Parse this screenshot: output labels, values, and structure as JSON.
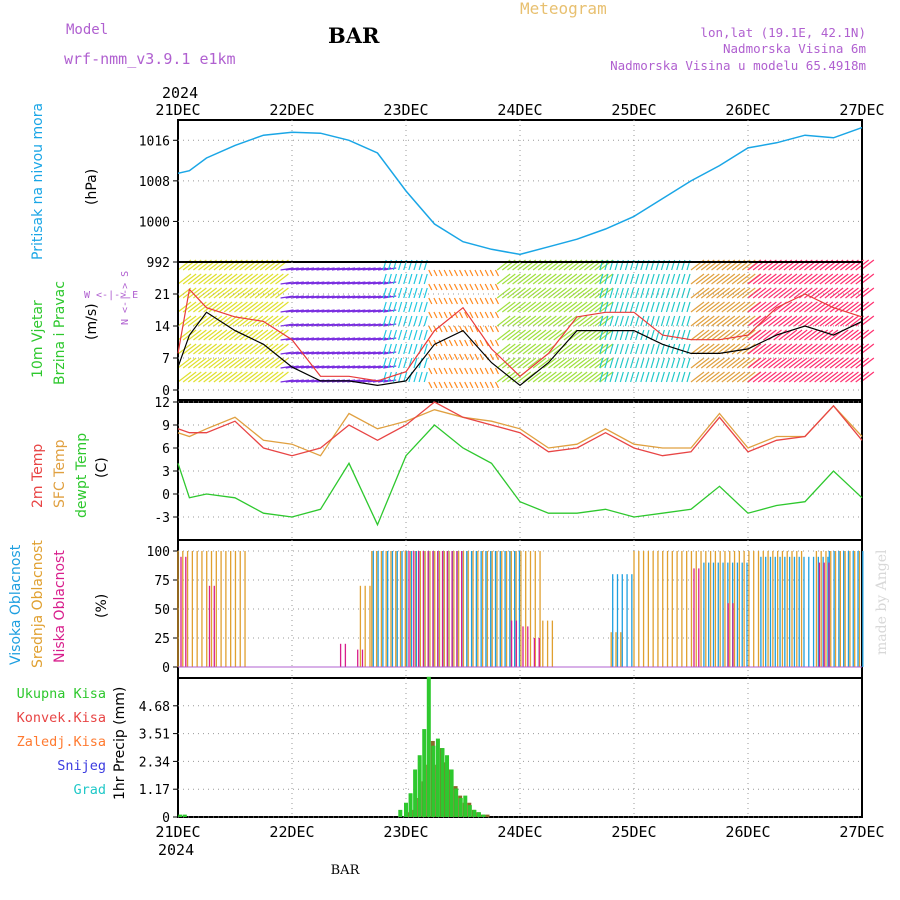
{
  "header": {
    "model_label": "Model",
    "model_name": "wrf-nmm_v3.9.1 e1km",
    "station": "BAR",
    "title": "Meteogram",
    "lonlat": "lon,lat (19.1E, 42.1N)",
    "elevation": "Nadmorska Visina 6m",
    "model_elevation": "Nadmorska Visina u modelu 65.4918m",
    "watermark": "made by Angel",
    "footer_station": "BAR"
  },
  "x_axis": {
    "year": "2024",
    "ticks": [
      "21DEC",
      "22DEC",
      "23DEC",
      "24DEC",
      "25DEC",
      "26DEC",
      "27DEC"
    ]
  },
  "colors": {
    "pressure": "#1aa6e6",
    "wind_speed": "#000000",
    "gust": "#e83a3a",
    "temp2m": "#e84545",
    "sfc_temp": "#e0a040",
    "dewpoint": "#2ec82e",
    "high_cloud": "#1e9fe0",
    "mid_cloud": "#e0a030",
    "low_cloud": "#d81e8c",
    "total_precip": "#2ec82e",
    "conv_precip": "#e84545",
    "frozen_precip": "#ff7a30",
    "snow": "#3a3ae0",
    "hail": "#20c8c8"
  },
  "chart_data": [
    {
      "type": "line",
      "panel": "pressure",
      "ylabel_1": "Pritisak na nivou mora",
      "ylabel_2": "(hPa)",
      "yticks": [
        "1016",
        "1008",
        "1000",
        "992"
      ],
      "ylim": [
        992,
        1020
      ],
      "x_days": [
        0,
        0.1,
        0.25,
        0.5,
        0.75,
        1.0,
        1.25,
        1.5,
        1.75,
        2.0,
        2.25,
        2.5,
        2.75,
        3.0,
        3.25,
        3.5,
        3.75,
        4.0,
        4.25,
        4.5,
        4.75,
        5.0,
        5.25,
        5.5,
        5.75,
        6.0
      ],
      "values": [
        1009.5,
        1010,
        1012.5,
        1015,
        1017,
        1017.6,
        1017.4,
        1016,
        1013.5,
        1006,
        999.5,
        996,
        994.5,
        993.5,
        995,
        996.5,
        998.5,
        1001,
        1004.5,
        1008,
        1011,
        1014.5,
        1015.5,
        1017,
        1016.5,
        1018.5
      ]
    },
    {
      "type": "line",
      "panel": "wind",
      "ylabel_1": "10m Vjetar",
      "ylabel_2": "Brzina i Pravac",
      "ylabel_3": "(m/s)",
      "compass_v": "N <-|-> S",
      "compass_h": "W <-|-> E",
      "yticks": [
        "21",
        "14",
        "7",
        "0"
      ],
      "ylim": [
        0,
        28
      ],
      "legend_speed": "",
      "x_days": [
        0,
        0.1,
        0.25,
        0.5,
        0.75,
        1.0,
        1.25,
        1.5,
        1.75,
        2.0,
        2.25,
        2.5,
        2.75,
        3.0,
        3.25,
        3.5,
        3.75,
        4.0,
        4.25,
        4.5,
        4.75,
        5.0,
        5.25,
        5.5,
        5.75,
        6.0
      ],
      "speed": [
        5,
        12,
        17,
        13,
        10,
        5,
        2,
        2,
        1,
        2,
        10,
        13,
        6,
        1,
        6,
        13,
        13,
        13,
        10,
        8,
        8,
        9,
        12,
        14,
        12,
        15
      ],
      "gust": [
        8,
        22,
        18,
        16,
        15,
        11,
        3,
        3,
        2,
        4,
        13,
        18,
        9,
        3,
        8,
        16,
        17,
        17,
        12,
        11,
        11,
        12,
        18,
        21,
        18,
        16
      ],
      "barb_segments": [
        {
          "x0": 0.0,
          "x1": 0.9,
          "color": "#e0e030",
          "dir": "sw"
        },
        {
          "x0": 0.9,
          "x1": 1.8,
          "color": "#7a2ee0",
          "dir": "w"
        },
        {
          "x0": 1.8,
          "x1": 2.2,
          "color": "#20c8e0",
          "dir": "s"
        },
        {
          "x0": 2.2,
          "x1": 2.8,
          "color": "#ff8a20",
          "dir": "n"
        },
        {
          "x0": 2.8,
          "x1": 3.7,
          "color": "#a0e040",
          "dir": "sw"
        },
        {
          "x0": 3.7,
          "x1": 4.5,
          "color": "#20c8c8",
          "dir": "s"
        },
        {
          "x0": 4.5,
          "x1": 5.0,
          "color": "#e0a040",
          "dir": "sw"
        },
        {
          "x0": 5.0,
          "x1": 6.0,
          "color": "#ff3070",
          "dir": "sw"
        }
      ]
    },
    {
      "type": "line",
      "panel": "temperature",
      "ylabel_1": "2m Temp",
      "ylabel_2": "SFC Temp",
      "ylabel_3": "dewpt Temp",
      "ylabel_4": "(C)",
      "yticks": [
        "12",
        "9",
        "6",
        "3",
        "0",
        "-3"
      ],
      "ylim": [
        -6,
        12
      ],
      "x_days": [
        0,
        0.1,
        0.25,
        0.5,
        0.75,
        1.0,
        1.25,
        1.5,
        1.75,
        2.0,
        2.25,
        2.5,
        2.75,
        3.0,
        3.25,
        3.5,
        3.75,
        4.0,
        4.25,
        4.5,
        4.75,
        5.0,
        5.25,
        5.5,
        5.75,
        6.0
      ],
      "temp2m": [
        8.5,
        8,
        8,
        9.5,
        6,
        5,
        6,
        9,
        7,
        9,
        12,
        10,
        9,
        8,
        5.5,
        6,
        8,
        6,
        5,
        5.5,
        10,
        5.5,
        7,
        7.5,
        11.5,
        7
      ],
      "sfc_temp": [
        8,
        7.5,
        8.5,
        10,
        7,
        6.5,
        5,
        10.5,
        8.5,
        9.5,
        11,
        10,
        9.5,
        8.5,
        6,
        6.5,
        8.5,
        6.5,
        6,
        6,
        10.5,
        6,
        7.5,
        7.5,
        11.5,
        7.5
      ],
      "dewpoint": [
        4,
        -0.5,
        0,
        -0.5,
        -2.5,
        -3,
        -2,
        4,
        -4,
        5,
        9,
        6,
        4,
        -1,
        -2.5,
        -2.5,
        -2,
        -3,
        -2.5,
        -2,
        1,
        -2.5,
        -1.5,
        -1,
        3,
        -0.5
      ]
    },
    {
      "type": "bar",
      "panel": "clouds",
      "ylabel_1": "Visoka Oblacnost",
      "ylabel_2": "Srednja Oblacnost",
      "ylabel_3": "Niska Oblacnost",
      "ylabel_4": "(%)",
      "yticks": [
        "100",
        "75",
        "50",
        "25",
        "0"
      ],
      "ylim": [
        0,
        100
      ],
      "series": [
        {
          "name": "Srednja Oblacnost",
          "blocks": [
            [
              0.0,
              0.6,
              100
            ],
            [
              1.6,
              1.7,
              70
            ],
            [
              1.7,
              2.0,
              100
            ],
            [
              2.0,
              3.2,
              100
            ],
            [
              3.2,
              3.3,
              40
            ],
            [
              3.8,
              3.9,
              30
            ],
            [
              4.0,
              5.5,
              100
            ],
            [
              5.6,
              6.0,
              100
            ]
          ]
        },
        {
          "name": "Visoka Oblacnost",
          "blocks": [
            [
              1.7,
              2.1,
              100
            ],
            [
              2.1,
              3.0,
              100
            ],
            [
              3.8,
              4.0,
              80
            ],
            [
              4.6,
              5.0,
              90
            ],
            [
              5.1,
              5.7,
              95
            ],
            [
              5.7,
              6.0,
              100
            ]
          ]
        },
        {
          "name": "Niska Oblacnost",
          "blocks": [
            [
              0.0,
              0.05,
              95
            ],
            [
              0.25,
              0.3,
              70
            ],
            [
              1.4,
              1.45,
              20
            ],
            [
              1.55,
              1.6,
              15
            ],
            [
              2.0,
              2.5,
              100
            ],
            [
              2.9,
              2.95,
              40
            ],
            [
              3.0,
              3.05,
              35
            ],
            [
              3.1,
              3.15,
              25
            ],
            [
              4.5,
              4.55,
              85
            ],
            [
              4.8,
              4.85,
              55
            ],
            [
              5.6,
              5.7,
              90
            ]
          ]
        }
      ]
    },
    {
      "type": "bar",
      "panel": "precipitation",
      "legend": [
        "Ukupna Kisa",
        "Konvek.Kisa",
        "Zaledj.Kisa",
        "Snijeg",
        "Grad"
      ],
      "ylabel": "1hr Precip (mm)",
      "yticks": [
        "4.68",
        "3.51",
        "2.34",
        "1.17",
        "0"
      ],
      "ylim": [
        0,
        5.85
      ],
      "x_days": [
        0.02,
        0.06,
        1.95,
        2.0,
        2.04,
        2.08,
        2.12,
        2.16,
        2.2,
        2.24,
        2.28,
        2.32,
        2.36,
        2.4,
        2.44,
        2.48,
        2.52,
        2.56,
        2.6,
        2.64,
        2.68
      ],
      "total": [
        0.1,
        0.1,
        0.3,
        0.6,
        1.0,
        2.0,
        2.6,
        3.7,
        5.9,
        3.0,
        3.3,
        2.9,
        2.6,
        2.0,
        1.2,
        0.8,
        0.9,
        0.5,
        0.3,
        0.2,
        0.1
      ],
      "convective": [
        0.0,
        0.0,
        0.0,
        0.2,
        0.3,
        0.8,
        1.5,
        2.2,
        3.2,
        2.2,
        2.9,
        2.3,
        2.0,
        1.3,
        0.9,
        0.6,
        0.6,
        0.3,
        0.2,
        0.1,
        0.1
      ]
    }
  ]
}
